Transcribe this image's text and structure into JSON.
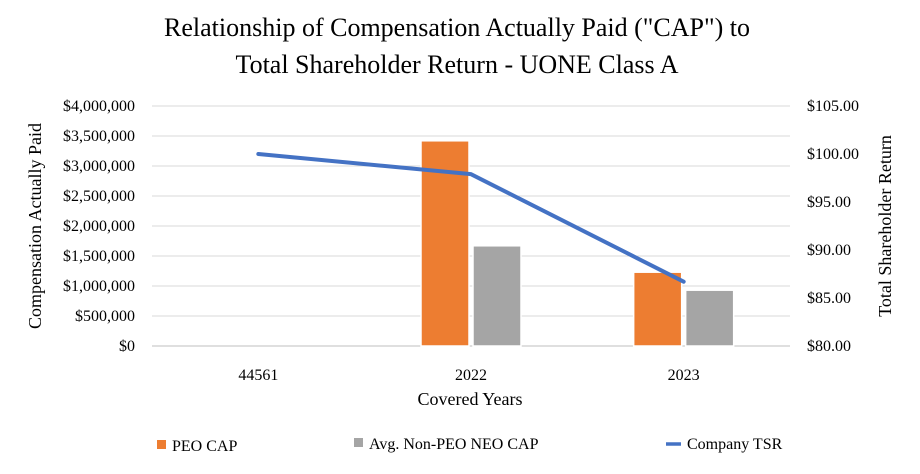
{
  "chart_data": {
    "type": "bar",
    "title_lines": [
      "Relationship of Compensation Actually Paid (\"CAP\") to",
      "Total Shareholder Return - UONE Class A"
    ],
    "xlabel": "Covered Years",
    "ylabel_left": "Compensation Actually Paid",
    "ylabel_right": "Total Shareholder Return",
    "categories": [
      "44561",
      "2022",
      "2023"
    ],
    "left_axis": {
      "ylim": [
        0,
        4000000
      ],
      "ticks": [
        0,
        500000,
        1000000,
        1500000,
        2000000,
        2500000,
        3000000,
        3500000,
        4000000
      ],
      "tick_labels": [
        "$0",
        "$500,000",
        "$1,000,000",
        "$1,500,000",
        "$2,000,000",
        "$2,500,000",
        "$3,000,000",
        "$3,500,000",
        "$4,000,000"
      ]
    },
    "right_axis": {
      "ylim": [
        80,
        105
      ],
      "ticks": [
        80,
        85,
        90,
        95,
        100,
        105
      ],
      "tick_labels": [
        "$80.00",
        "$85.00",
        "$90.00",
        "$95.00",
        "$100.00",
        "$105.00"
      ]
    },
    "series": [
      {
        "name": "PEO CAP",
        "type": "bar",
        "axis": "left",
        "color": "#ED7D31",
        "values": [
          0,
          3420000,
          1230000
        ]
      },
      {
        "name": "Avg. Non-PEO NEO CAP",
        "type": "bar",
        "axis": "left",
        "color": "#A5A5A5",
        "values": [
          0,
          1670000,
          930000
        ]
      },
      {
        "name": "Company TSR",
        "type": "line",
        "axis": "right",
        "color": "#4472C4",
        "values": [
          100.0,
          97.9,
          86.7
        ]
      }
    ],
    "grid": true,
    "legend_position": "bottom"
  }
}
